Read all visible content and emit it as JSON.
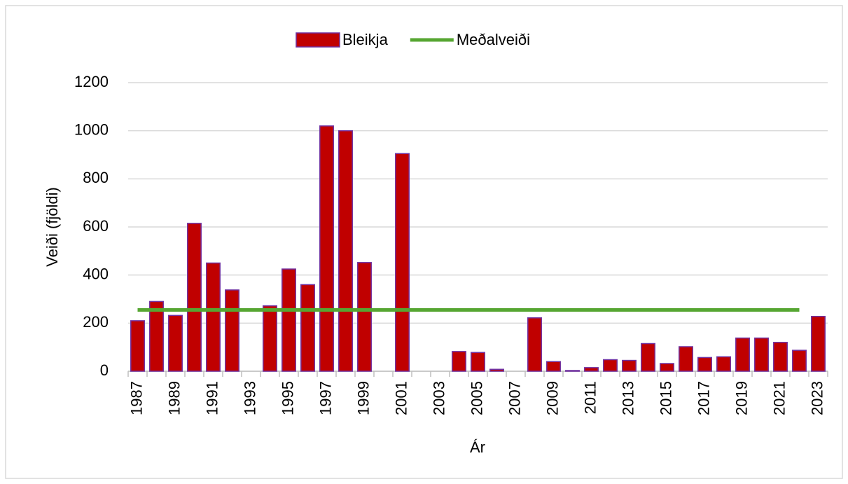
{
  "chart_data": {
    "type": "bar",
    "y_label": "Veiði (fjöldi)",
    "x_label": "Ár",
    "categories": [
      "1987",
      null,
      "1989",
      null,
      "1991",
      null,
      "1993",
      null,
      "1995",
      null,
      "1997",
      null,
      "1999",
      null,
      "2001",
      null,
      "2003",
      null,
      "2005",
      null,
      "2007",
      null,
      "2009",
      null,
      "2011",
      null,
      "2013",
      null,
      "2015",
      null,
      "2017",
      null,
      "2019",
      null,
      "2021",
      null,
      "2023"
    ],
    "series": [
      {
        "name": "Bleikja",
        "type": "bar",
        "color": "#c00000",
        "stroke": "#7030a0",
        "values": [
          210,
          290,
          232,
          615,
          450,
          338,
          null,
          272,
          425,
          360,
          1020,
          1000,
          452,
          null,
          905,
          null,
          null,
          82,
          78,
          8,
          null,
          222,
          40,
          3,
          15,
          48,
          45,
          115,
          32,
          102,
          57,
          60,
          138,
          138,
          120,
          87,
          228
        ]
      },
      {
        "name": "Meðalveiði",
        "type": "line",
        "color": "#56a632",
        "values": [
          255,
          255,
          255,
          255,
          255,
          255,
          255,
          255,
          255,
          255,
          255,
          255,
          255,
          255,
          255,
          255,
          255,
          255,
          255,
          255,
          255,
          255,
          255,
          255,
          255,
          255,
          255,
          255,
          255,
          255,
          255,
          255,
          255,
          255,
          255,
          255,
          null
        ]
      }
    ],
    "ylim": [
      0,
      1200
    ],
    "yticks": [
      0,
      200,
      400,
      600,
      800,
      1000,
      1200
    ],
    "grid": true,
    "legend": "top"
  }
}
